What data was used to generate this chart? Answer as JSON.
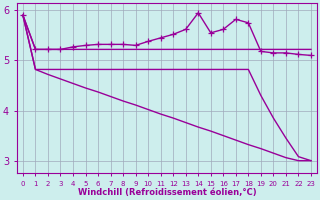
{
  "xlabel": "Windchill (Refroidissement éolien,°C)",
  "x": [
    0,
    1,
    2,
    3,
    4,
    5,
    6,
    7,
    8,
    9,
    10,
    11,
    12,
    13,
    14,
    15,
    16,
    17,
    18,
    19,
    20,
    21,
    22,
    23
  ],
  "line1_y": [
    5.9,
    5.22,
    5.22,
    5.22,
    5.27,
    5.3,
    5.32,
    5.32,
    5.32,
    5.3,
    5.38,
    5.45,
    5.52,
    5.62,
    5.95,
    5.55,
    5.62,
    5.82,
    5.75,
    5.18,
    5.15,
    5.15,
    5.12,
    5.1
  ],
  "line2_y": [
    5.9,
    5.22,
    5.22,
    5.22,
    5.22,
    5.22,
    5.22,
    5.22,
    5.22,
    5.22,
    5.22,
    5.22,
    5.22,
    5.22,
    5.22,
    5.22,
    5.22,
    5.22,
    5.22,
    5.22,
    5.22,
    5.22,
    5.22,
    5.22
  ],
  "line3_y": [
    5.9,
    4.82,
    4.82,
    4.82,
    4.82,
    4.82,
    4.82,
    4.82,
    4.82,
    4.82,
    4.82,
    4.82,
    4.82,
    4.82,
    4.82,
    4.82,
    4.82,
    4.82,
    4.82,
    4.3,
    3.85,
    3.45,
    3.08,
    3.0
  ],
  "line4_y": [
    5.9,
    4.82,
    4.72,
    4.63,
    4.54,
    4.45,
    4.37,
    4.28,
    4.19,
    4.11,
    4.02,
    3.93,
    3.85,
    3.76,
    3.67,
    3.59,
    3.5,
    3.41,
    3.32,
    3.24,
    3.15,
    3.06,
    3.0,
    3.0
  ],
  "ylim": [
    2.75,
    6.15
  ],
  "yticks": [
    3,
    4,
    5,
    6
  ],
  "bg_color": "#cdeeed",
  "grid_color": "#a0aabb",
  "line_color": "#990099"
}
